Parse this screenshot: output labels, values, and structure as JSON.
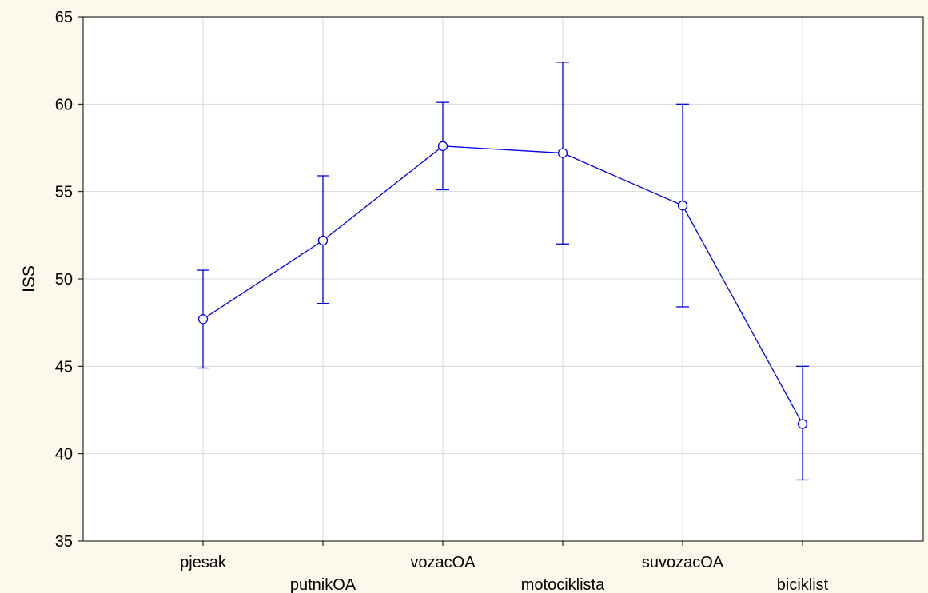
{
  "chart_data": {
    "type": "line",
    "title": "",
    "xlabel": "",
    "ylabel": "ISS",
    "ylim": [
      35,
      65
    ],
    "yticks": [
      35,
      40,
      45,
      50,
      55,
      60,
      65
    ],
    "grid": true,
    "categories": [
      "pjesak",
      "putnikOA",
      "vozacOA",
      "motociklista",
      "suvozacOA",
      "biciklist"
    ],
    "series": [
      {
        "values": [
          47.7,
          52.2,
          57.6,
          57.2,
          54.2,
          41.7
        ],
        "lower": [
          44.9,
          48.6,
          55.1,
          52.0,
          48.4,
          38.5
        ],
        "upper": [
          50.5,
          55.9,
          60.1,
          62.4,
          60.0,
          45.0
        ]
      }
    ],
    "colors": {
      "series": "#0000e6",
      "grid": "#d9d9d9",
      "background": "#fdf8ec",
      "plot_area": "#ffffff"
    }
  }
}
